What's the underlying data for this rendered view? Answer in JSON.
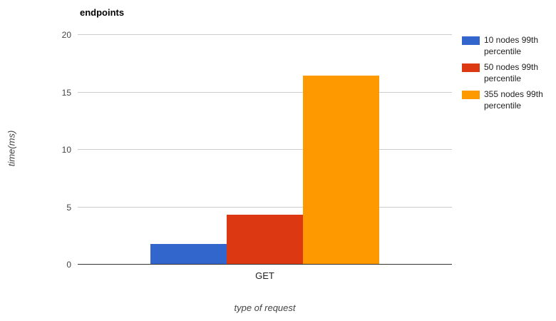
{
  "chart_data": {
    "type": "bar",
    "title": "endpoints",
    "xlabel": "type of request",
    "ylabel": "time(ms)",
    "categories": [
      "GET"
    ],
    "series": [
      {
        "name": "10 nodes 99th percentile",
        "color": "#3366CC",
        "values": [
          1.75
        ]
      },
      {
        "name": "50 nodes 99th percentile",
        "color": "#DC3912",
        "values": [
          4.3
        ]
      },
      {
        "name": "355 nodes 99th percentile",
        "color": "#FF9900",
        "values": [
          16.4
        ]
      }
    ],
    "ylim": [
      0,
      20
    ],
    "yticks": [
      0,
      5,
      10,
      15,
      20
    ],
    "grid": true,
    "legend_position": "right"
  },
  "colors": {
    "grid": "#CCCCCC",
    "baseline": "#333333",
    "tick_label": "#444444",
    "axis_title": "#444444",
    "legend_text": "#222222",
    "title": "#000000",
    "background": "#FFFFFF"
  }
}
